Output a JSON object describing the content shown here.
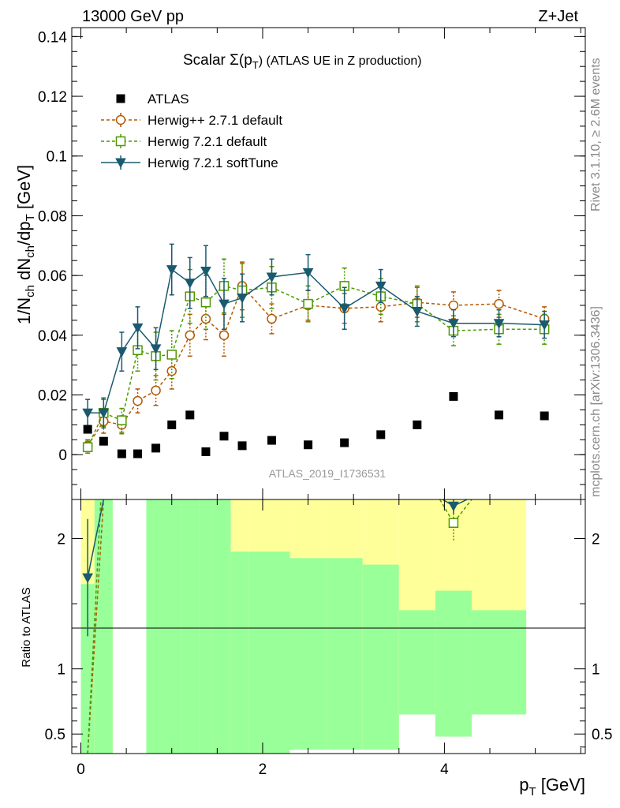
{
  "header": {
    "left": "13000 GeV pp",
    "right": "Z+Jet"
  },
  "side_labels": {
    "rivet": "Rivet 3.1.10, ≥ 2.6M events",
    "mcplots": "mcplots.cern.ch [arXiv:1306.3436]"
  },
  "analysis_label": "ATLAS_2019_I1736531",
  "title": {
    "main": "Scalar Σ(p",
    "sub": "T",
    "rest": ") (ATLAS UE in Z production)"
  },
  "colors": {
    "atlas": "#000000",
    "herwigpp": "#b35900",
    "herwig72": "#4d9900",
    "softtune": "#1a5a6e",
    "band_inner": "#99ff99",
    "band_outer": "#ffff99"
  },
  "chart_data": {
    "type": "line",
    "main": {
      "ylabel": "1/N_ch dN_ch/dp_T [GeV]",
      "ylim": [
        -0.015,
        0.143
      ],
      "yticks": [
        "0",
        "0.02",
        "0.04",
        "0.06",
        "0.08",
        "0.1",
        "0.12",
        "0.14"
      ],
      "ytick_values": [
        0,
        0.02,
        0.04,
        0.06,
        0.08,
        0.1,
        0.12,
        0.14
      ]
    },
    "ratio": {
      "ylabel": "Ratio to ATLAS",
      "ylim": [
        0.35,
        2.3
      ],
      "yticks": [
        "0.5",
        "1",
        "2"
      ],
      "ytick_values": [
        0.5,
        1,
        2
      ]
    },
    "x": {
      "label_main": "p",
      "label_sub": "T",
      "label_unit": " [GeV]",
      "xlim": [
        -0.1,
        5.55
      ],
      "xticks": [
        "0",
        "2",
        "4"
      ],
      "xtick_values": [
        0,
        2,
        4
      ]
    },
    "legend": {
      "placement": "top-left",
      "entries": [
        "ATLAS",
        "Herwig++ 2.7.1 default",
        "Herwig 7.2.1 default",
        "Herwig 7.2.1 softTune"
      ]
    },
    "atlas": {
      "name": "ATLAS",
      "x": [
        0.075,
        0.25,
        0.45,
        0.625,
        0.825,
        1.0,
        1.2,
        1.375,
        1.575,
        1.775,
        2.1,
        2.5,
        2.9,
        3.3,
        3.7,
        4.1,
        4.6,
        5.1
      ],
      "y": [
        0.0085,
        0.0045,
        0.0003,
        0.0003,
        0.0022,
        0.01,
        0.0133,
        0.001,
        0.0062,
        0.003,
        0.0048,
        0.0033,
        0.004,
        0.0067,
        0.01,
        0.0195,
        0.0133,
        0.013
      ]
    },
    "series": [
      {
        "name": "Herwig++ 2.7.1 default",
        "x": [
          0.075,
          0.25,
          0.45,
          0.625,
          0.825,
          1.0,
          1.2,
          1.375,
          1.575,
          1.775,
          2.1,
          2.5,
          2.9,
          3.3,
          3.7,
          4.1,
          4.6,
          5.1
        ],
        "y": [
          0.003,
          0.0112,
          0.01,
          0.018,
          0.0215,
          0.028,
          0.04,
          0.0455,
          0.04,
          0.0565,
          0.0455,
          0.05,
          0.049,
          0.0495,
          0.051,
          0.05,
          0.0505,
          0.0455
        ],
        "err": [
          0.002,
          0.004,
          0.003,
          0.004,
          0.005,
          0.006,
          0.007,
          0.007,
          0.007,
          0.008,
          0.005,
          0.005,
          0.005,
          0.005,
          0.005,
          0.0045,
          0.0045,
          0.004
        ],
        "ratio": [
          0.35,
          2.3
        ]
      },
      {
        "name": "Herwig 7.2.1 default",
        "x": [
          0.075,
          0.25,
          0.45,
          0.625,
          0.825,
          1.0,
          1.2,
          1.375,
          1.575,
          1.775,
          2.1,
          2.5,
          2.9,
          3.3,
          3.7,
          4.1,
          4.6,
          5.1
        ],
        "y": [
          0.0025,
          0.014,
          0.0115,
          0.035,
          0.033,
          0.0335,
          0.053,
          0.051,
          0.0565,
          0.055,
          0.056,
          0.0505,
          0.0565,
          0.053,
          0.0505,
          0.0415,
          0.042,
          0.042
        ],
        "err": [
          0.002,
          0.0045,
          0.004,
          0.007,
          0.008,
          0.008,
          0.009,
          0.009,
          0.009,
          0.009,
          0.007,
          0.006,
          0.006,
          0.006,
          0.006,
          0.005,
          0.005,
          0.005
        ],
        "ratio": [
          null,
          null,
          null,
          null,
          null,
          null,
          null,
          null,
          null,
          null,
          null,
          null,
          null,
          null,
          null,
          2.12,
          null,
          null
        ]
      },
      {
        "name": "Herwig 7.2.1 softTune",
        "x": [
          0.075,
          0.25,
          0.45,
          0.625,
          0.825,
          1.0,
          1.2,
          1.375,
          1.575,
          1.775,
          2.1,
          2.5,
          2.9,
          3.3,
          3.7,
          4.1,
          4.6,
          5.1
        ],
        "y": [
          0.014,
          0.014,
          0.0345,
          0.0425,
          0.0355,
          0.062,
          0.0575,
          0.0615,
          0.0505,
          0.0525,
          0.0595,
          0.061,
          0.049,
          0.0565,
          0.048,
          0.044,
          0.044,
          0.0435
        ],
        "err": [
          0.0045,
          0.005,
          0.0065,
          0.007,
          0.007,
          0.0085,
          0.0085,
          0.0085,
          0.0085,
          0.008,
          0.006,
          0.006,
          0.007,
          0.0055,
          0.005,
          0.0045,
          0.0045,
          0.0045
        ],
        "ratio": [
          1.7,
          2.3,
          null,
          null,
          null,
          null,
          null,
          null,
          null,
          null,
          null,
          null,
          null,
          null,
          null,
          2.25,
          null,
          null
        ],
        "ratio_err": [
          0.45,
          0,
          null,
          null,
          null,
          null,
          null,
          null,
          null,
          null,
          null,
          null,
          null,
          null,
          null,
          0.1,
          null,
          null
        ]
      }
    ],
    "ratio_bands": {
      "edges": [
        0.0,
        0.15,
        0.35,
        0.55,
        0.72,
        0.92,
        1.1,
        1.3,
        1.45,
        1.65,
        1.85,
        2.3,
        2.7,
        3.1,
        3.5,
        3.9,
        4.3,
        4.9,
        5.35
      ],
      "inner_lo": [
        0.35,
        0.35,
        null,
        null,
        0.35,
        0.35,
        0.35,
        0.35,
        0.35,
        0.35,
        0.35,
        0.35,
        0.35,
        0.35,
        0.35,
        0.35,
        0.35,
        0.35
      ],
      "inner_hi": [
        1.65,
        2.3,
        null,
        null,
        2.3,
        2.3,
        2.3,
        2.3,
        2.3,
        2.3,
        2.3,
        2.3,
        2.3,
        2.3,
        2.3,
        2.3,
        2.3,
        2.3
      ],
      "inner_hi_real": [
        1.65,
        2.3,
        null,
        null,
        2.3,
        2.3,
        2.3,
        2.3,
        2.3,
        1.9,
        1.9,
        1.85,
        1.85,
        1.8,
        1.45,
        1.6,
        1.45
      ],
      "outer_lo": [
        0.35,
        0.35,
        null,
        null,
        0.35,
        0.35,
        0.35,
        0.35,
        0.35,
        0.35,
        0.35,
        0.38,
        0.38,
        0.38,
        0.65,
        0.48,
        0.65
      ],
      "outer_hi": [
        2.3,
        2.3,
        null,
        null,
        2.3,
        2.3,
        2.3,
        2.3,
        2.3,
        2.3,
        2.3,
        2.3,
        2.3,
        2.3,
        2.3,
        2.3,
        2.3
      ]
    }
  }
}
